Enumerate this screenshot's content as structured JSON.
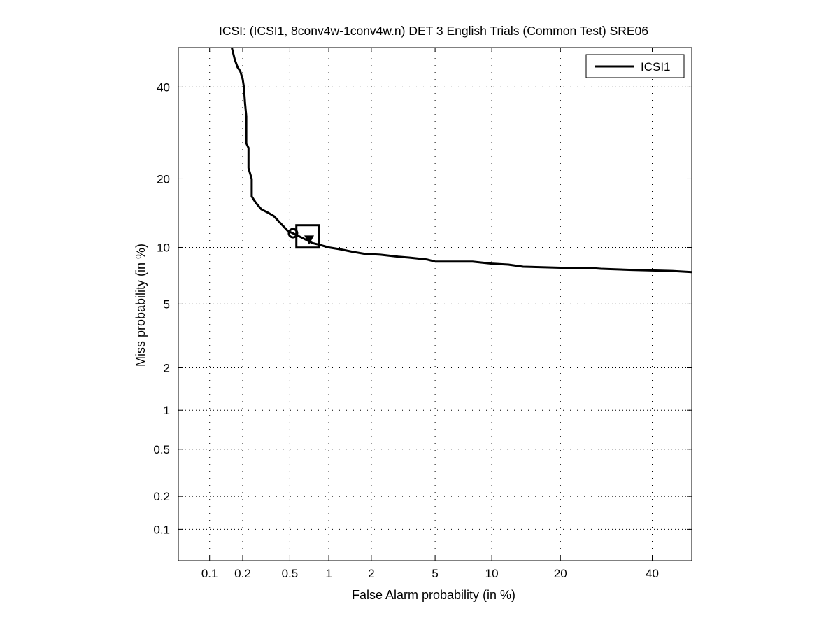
{
  "chart_data": {
    "type": "line",
    "title": "ICSI: (ICSI1, 8conv4w-1conv4w.n) DET 3 English Trials (Common Test) SRE06",
    "xlabel": "False Alarm probability (in %)",
    "ylabel": "Miss probability (in %)",
    "x_scale": "normal-deviate (probit)",
    "y_scale": "normal-deviate (probit)",
    "xlim": [
      0.05,
      50
    ],
    "ylim": [
      0.05,
      50
    ],
    "x_ticks": [
      0.1,
      0.2,
      0.5,
      1,
      2,
      5,
      10,
      20,
      40
    ],
    "x_tick_labels": [
      "0.1",
      "0.2",
      "0.5",
      "1",
      "2",
      "5",
      "10",
      "20",
      "40"
    ],
    "y_ticks": [
      0.1,
      0.2,
      0.5,
      1,
      2,
      5,
      10,
      20,
      40
    ],
    "y_tick_labels": [
      "0.1",
      "0.2",
      "0.5",
      "1",
      "2",
      "5",
      "10",
      "20",
      "40"
    ],
    "grid": true,
    "legend_position": "top-right",
    "series": [
      {
        "name": "ICSI1",
        "color": "#000000",
        "x": [
          0.16,
          0.17,
          0.18,
          0.19,
          0.2,
          0.205,
          0.21,
          0.215,
          0.215,
          0.225,
          0.225,
          0.24,
          0.24,
          0.26,
          0.29,
          0.33,
          0.37,
          0.42,
          0.48,
          0.56,
          0.65,
          0.75,
          0.85,
          1.0,
          1.2,
          1.5,
          1.8,
          2.3,
          3.0,
          3.5,
          4.5,
          5.0,
          6.5,
          8.0,
          10.0,
          12.0,
          14.0,
          20.0,
          25.0,
          28.0,
          35.0,
          45.0,
          50.0
        ],
        "y": [
          50,
          47,
          45,
          44,
          42,
          40,
          36,
          33,
          27,
          26,
          22,
          20,
          17,
          16,
          15,
          14.5,
          14,
          13,
          12,
          11.5,
          11,
          10.5,
          10.3,
          10,
          9.8,
          9.5,
          9.3,
          9.2,
          9,
          8.9,
          8.7,
          8.5,
          8.5,
          8.5,
          8.3,
          8.2,
          8.0,
          7.9,
          7.9,
          7.8,
          7.7,
          7.6,
          7.5
        ]
      }
    ],
    "markers": [
      {
        "label": "min DCF",
        "shape": "circle",
        "x": 0.53,
        "y": 11.7
      },
      {
        "label": "actual DCF",
        "shape": "triangle-down",
        "x": 0.71,
        "y": 10.9
      },
      {
        "label": "confidence box",
        "shape": "square",
        "x": 0.69,
        "y": 11.3
      }
    ]
  }
}
